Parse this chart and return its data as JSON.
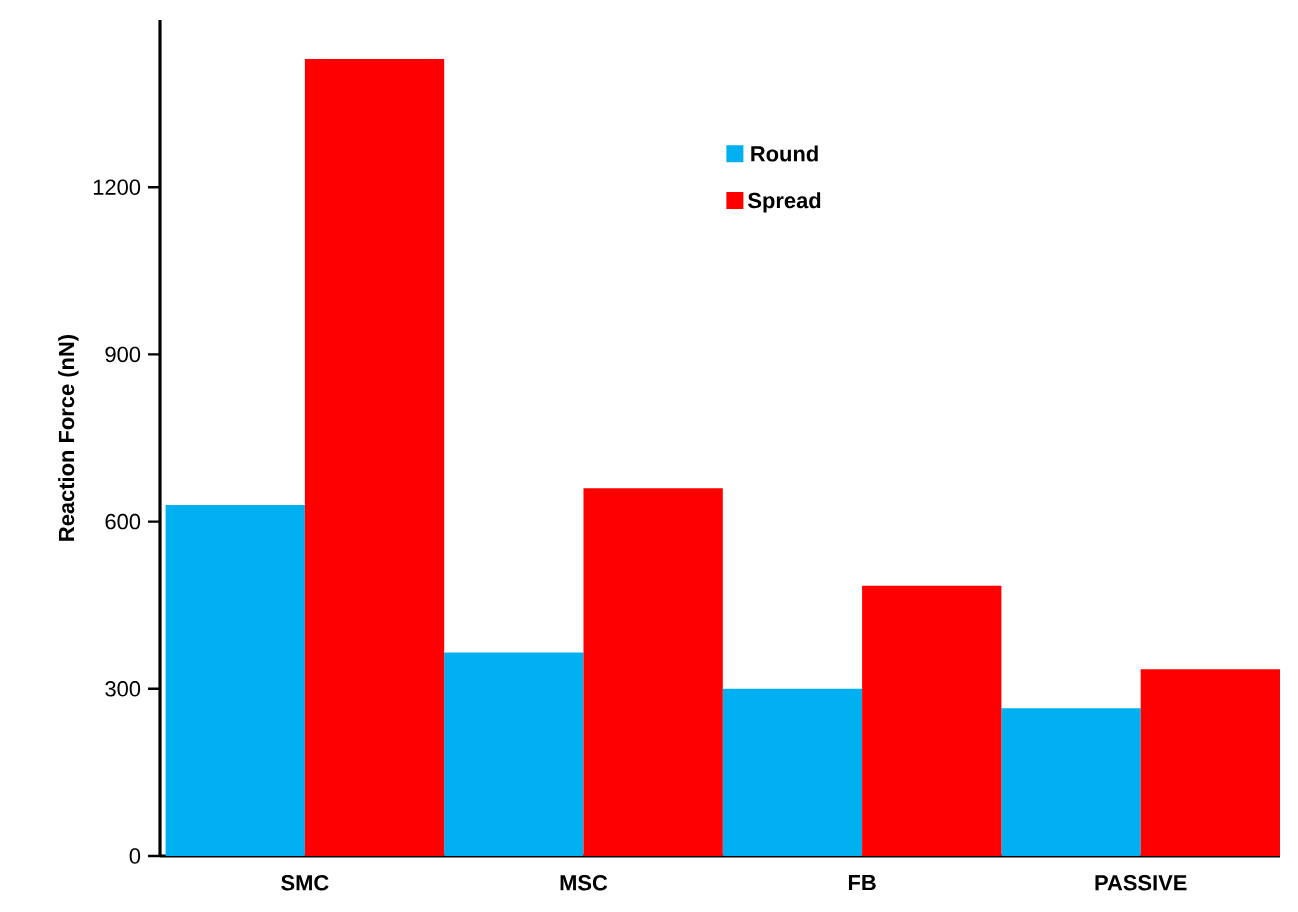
{
  "chart_data": {
    "type": "bar",
    "ylabel": "Reaction Force (nN)",
    "categories": [
      "SMC",
      "MSC",
      "FB",
      "PASSIVE"
    ],
    "series": [
      {
        "name": "Round",
        "color": "#00b0f0",
        "values": [
          630,
          365,
          300,
          265
        ]
      },
      {
        "name": "Spread",
        "color": "#ff0000",
        "values": [
          1430,
          660,
          485,
          335
        ]
      }
    ],
    "ylim": [
      0,
      1500
    ],
    "yticks": [
      0,
      300,
      600,
      900,
      1200
    ],
    "grid": false,
    "legend": "top"
  }
}
